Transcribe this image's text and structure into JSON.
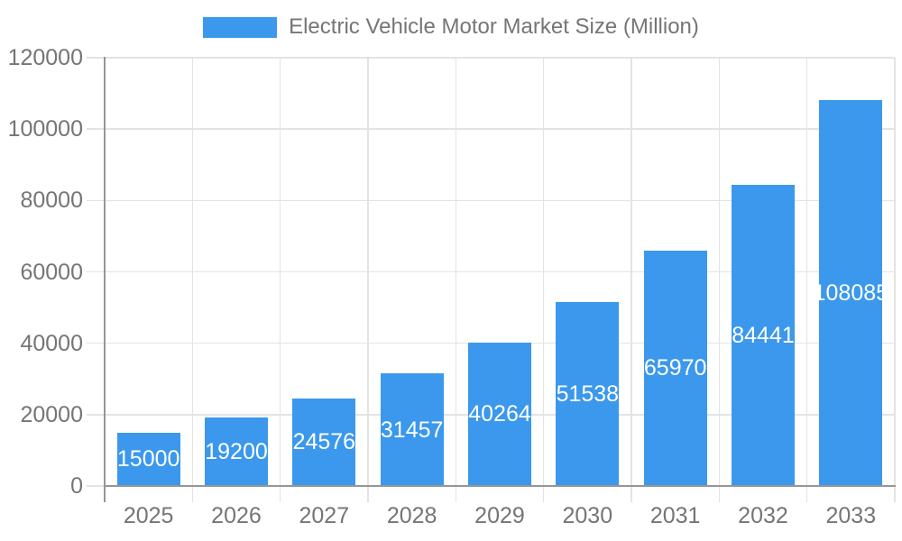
{
  "chart_data": {
    "type": "bar",
    "title": "Electric Vehicle Motor Market Size (Million)",
    "legend_position": "top",
    "categories": [
      "2025",
      "2026",
      "2027",
      "2028",
      "2029",
      "2030",
      "2031",
      "2032",
      "2033"
    ],
    "values": [
      15000,
      19200,
      24576,
      31457,
      40264,
      51538,
      65970,
      84441,
      108085
    ],
    "value_labels_visible": true,
    "value_label_placement": "inside-center",
    "xlabel": "",
    "ylabel": "",
    "ylim": [
      0,
      120000
    ],
    "ytick_step": 20000,
    "ytick_labels": [
      "0",
      "20000",
      "40000",
      "60000",
      "80000",
      "100000",
      "120000"
    ],
    "grid": true
  },
  "style": {
    "bar_color": "#3b98ec",
    "grid_color": "#e3e3e3",
    "axis_color": "#969696",
    "tick_label_color": "#757575",
    "value_label_color": "#ffffff",
    "legend_text_color": "#757575",
    "background_color": "#ffffff"
  }
}
